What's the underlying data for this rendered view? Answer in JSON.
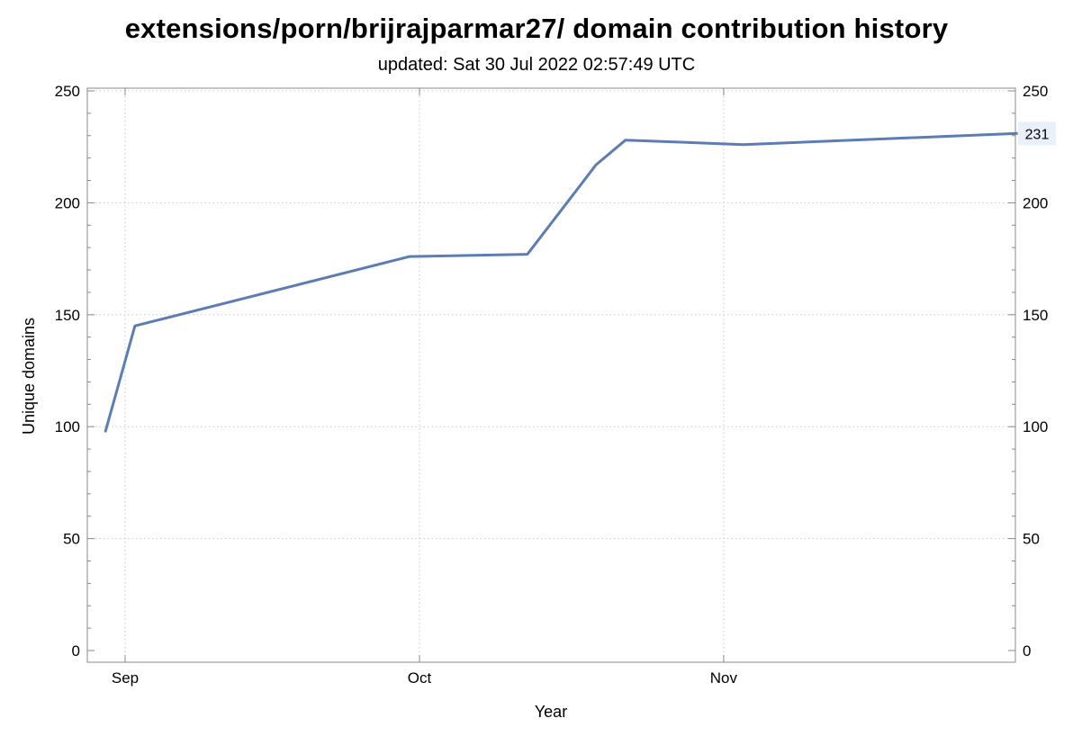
{
  "chart_data": {
    "type": "line",
    "title": "extensions/porn/brijrajparmar27/ domain contribution history",
    "subtitle": "updated: Sat 30 Jul 2022 02:57:49 UTC",
    "xlabel": "Year",
    "ylabel": "Unique domains",
    "ylim": [
      0,
      250
    ],
    "yticks": [
      0,
      50,
      100,
      150,
      200,
      250
    ],
    "xlim": [
      "2021-08-28",
      "2021-11-27"
    ],
    "xticks": [
      {
        "label": "Sep",
        "date": "2021-09-01"
      },
      {
        "label": "Oct",
        "date": "2021-10-01"
      },
      {
        "label": "Nov",
        "date": "2021-11-01"
      }
    ],
    "grid": true,
    "series": [
      {
        "color": "#5b7db3",
        "x": [
          "2021-08-30",
          "2021-09-02",
          "2021-09-30",
          "2021-10-12",
          "2021-10-19",
          "2021-10-22",
          "2021-11-03",
          "2021-11-31"
        ],
        "values": [
          98,
          145,
          176,
          177,
          217,
          228,
          226,
          231
        ]
      }
    ],
    "end_label": "231"
  }
}
